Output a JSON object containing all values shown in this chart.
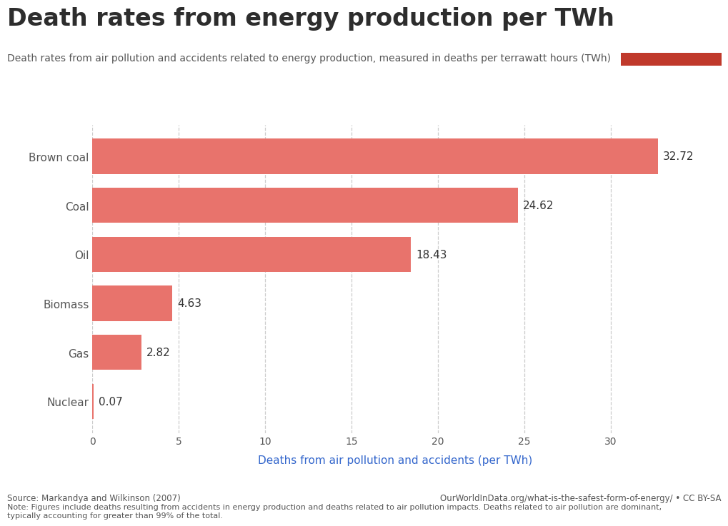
{
  "title": "Death rates from energy production per TWh",
  "subtitle": "Death rates from air pollution and accidents related to energy production, measured in deaths per terrawatt hours (TWh)",
  "categories": [
    "Nuclear",
    "Gas",
    "Biomass",
    "Oil",
    "Coal",
    "Brown coal"
  ],
  "values": [
    0.07,
    2.82,
    4.63,
    18.43,
    24.62,
    32.72
  ],
  "bar_color": "#E8736C",
  "background_color": "#FFFFFF",
  "xlabel": "Deaths from air pollution and accidents (per TWh)",
  "xlabel_color": "#3366CC",
  "title_color": "#2d2d2d",
  "subtitle_color": "#555555",
  "xlim": [
    0,
    35
  ],
  "xticks": [
    0,
    5,
    10,
    15,
    20,
    25,
    30
  ],
  "grid_color": "#CCCCCC",
  "source_text": "Source: Markandya and Wilkinson (2007)",
  "note_text": "Note: Figures include deaths resulting from accidents in energy production and deaths related to air pollution impacts. Deaths related to air pollution are dominant,\ntypically accounting for greater than 99% of the total.",
  "url_text": "OurWorldInData.org/what-is-the-safest-form-of-energy/ • CC BY-SA",
  "owid_box_color": "#1a2e4a",
  "owid_stripe_color": "#C0392B",
  "value_label_color": "#333333",
  "tick_color": "#555555",
  "title_fontsize": 24,
  "subtitle_fontsize": 10,
  "ylabel_fontsize": 11,
  "xlabel_fontsize": 11,
  "tick_fontsize": 10,
  "value_fontsize": 11
}
